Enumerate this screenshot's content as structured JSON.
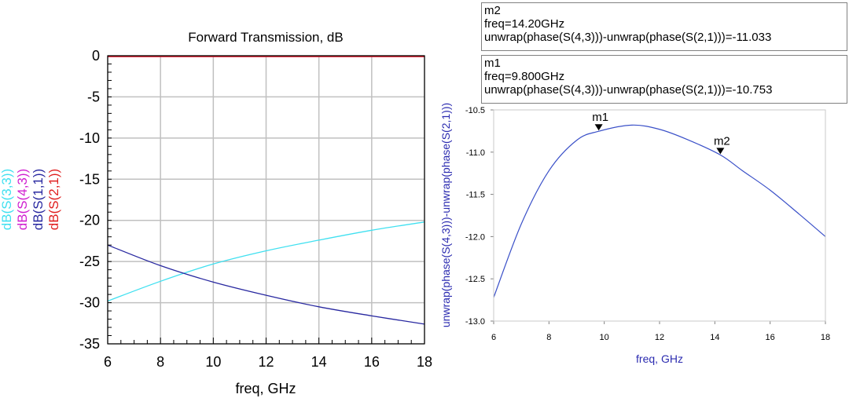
{
  "chart_data": [
    {
      "type": "line",
      "title": "Forward Transmission, dB",
      "xlabel": "freq, GHz",
      "xlim": [
        6,
        18
      ],
      "ylim": [
        -35,
        0
      ],
      "xticks": [
        "6",
        "8",
        "10",
        "12",
        "14",
        "16",
        "18"
      ],
      "yticks": [
        "0",
        "-5",
        "-10",
        "-15",
        "-20",
        "-25",
        "-30",
        "-35"
      ],
      "grid": true,
      "series": [
        {
          "name": "dB(S(3,3))",
          "color": "#40e0f0",
          "x": [
            6,
            8,
            10,
            12,
            14,
            16,
            18
          ],
          "values": [
            -29.8,
            -27.4,
            -25.3,
            -23.7,
            -22.4,
            -21.2,
            -20.2
          ]
        },
        {
          "name": "dB(S(4,3))",
          "color": "#d020d0",
          "x": [
            6,
            8,
            10,
            12,
            14,
            16,
            18
          ],
          "values": [
            -0.1,
            -0.1,
            -0.1,
            -0.1,
            -0.1,
            -0.1,
            -0.1
          ]
        },
        {
          "name": "dB(S(1,1))",
          "color": "#2828a0",
          "x": [
            6,
            8,
            10,
            12,
            14,
            16,
            18
          ],
          "values": [
            -23.0,
            -25.5,
            -27.5,
            -29.1,
            -30.5,
            -31.6,
            -32.6
          ]
        },
        {
          "name": "dB(S(2,1))",
          "color": "#e02020",
          "x": [
            6,
            8,
            10,
            12,
            14,
            16,
            18
          ],
          "values": [
            -0.1,
            -0.1,
            -0.1,
            -0.1,
            -0.1,
            -0.1,
            -0.1
          ]
        }
      ]
    },
    {
      "type": "line",
      "xlabel": "freq, GHz",
      "ylabel": "unwrap(phase(S(4,3)))-unwrap(phase(S(2,1)))",
      "xlim": [
        6,
        18
      ],
      "ylim": [
        -13.0,
        -10.5
      ],
      "xticks": [
        "6",
        "8",
        "10",
        "12",
        "14",
        "16",
        "18"
      ],
      "yticks": [
        "-10.5",
        "-11.0",
        "-11.5",
        "-12.0",
        "-12.5",
        "-13.0"
      ],
      "grid": false,
      "series": [
        {
          "color": "#3a50c8",
          "x": [
            6,
            7,
            8,
            9,
            9.8,
            11,
            12,
            13,
            14.2,
            15,
            16,
            17,
            18
          ],
          "values": [
            -12.72,
            -11.85,
            -11.22,
            -10.86,
            -10.753,
            -10.68,
            -10.73,
            -10.85,
            -11.033,
            -11.22,
            -11.45,
            -11.72,
            -12.0
          ]
        }
      ],
      "markers": [
        {
          "label": "m1",
          "x": 9.8,
          "y": -10.753
        },
        {
          "label": "m2",
          "x": 14.2,
          "y": -11.033
        }
      ]
    }
  ],
  "marker_boxes": [
    {
      "name": "m2",
      "freq": "freq=14.20GHz",
      "expr": "unwrap(phase(S(4,3)))-unwrap(phase(S(2,1)))=-11.033"
    },
    {
      "name": "m1",
      "freq": "freq=9.800GHz",
      "expr": "unwrap(phase(S(4,3)))-unwrap(phase(S(2,1)))=-10.753"
    }
  ]
}
